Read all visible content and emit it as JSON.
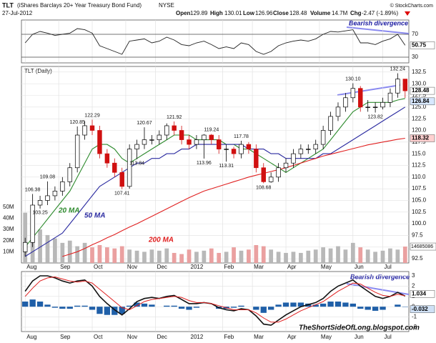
{
  "header": {
    "symbol": "TLT",
    "name": "(iShares Barclays 20+ Year Treasury Bond Fund)",
    "exchange": "NYSE",
    "date": "27-Jul-2012",
    "credit": "© StockCharts.com",
    "watermark": "TheShortSideOfLong.blogspot.com",
    "quote": [
      {
        "label": "Open",
        "value": "129.89"
      },
      {
        "label": "High",
        "value": "130.01"
      },
      {
        "label": "Low",
        "value": "126.96"
      },
      {
        "label": "Close",
        "value": "128.48"
      },
      {
        "label": "Volume",
        "value": "14.7M"
      },
      {
        "label": "Chg",
        "value": "-2.47 (-1.89%)"
      }
    ]
  },
  "chart_data": [
    {
      "type": "line",
      "annotation": "Bearish divergence",
      "ylim": [
        20,
        95
      ],
      "yticks": [
        30,
        70
      ],
      "series": [
        {
          "color": "#222222",
          "values": [
            55,
            70,
            75,
            72,
            68,
            70,
            72,
            80,
            78,
            72,
            50,
            45,
            40,
            35,
            58,
            60,
            62,
            55,
            58,
            65,
            60,
            52,
            50,
            55,
            58,
            52,
            45,
            48,
            45,
            55,
            52,
            40,
            35,
            40,
            50,
            55,
            58,
            60,
            58,
            62,
            70,
            75,
            74,
            76,
            78,
            55,
            55,
            52,
            58,
            62,
            70,
            50.75
          ]
        }
      ]
    },
    {
      "type": "candlestick",
      "title": "TLT (Daily)",
      "ylim": [
        91.6,
        133.7
      ],
      "xlim": [
        -0.5,
        51.5
      ],
      "yticks": [
        92.5,
        {
          "value": 95,
          "label": "95.0"
        },
        97.5,
        {
          "value": 100,
          "label": "100.0"
        },
        102.5,
        {
          "value": 105,
          "label": "105.0"
        },
        107.5,
        {
          "value": 110,
          "label": "110.0"
        },
        112.5,
        {
          "value": 115,
          "label": "115.0"
        },
        117.5,
        {
          "value": 120,
          "label": "120.0"
        },
        122.5,
        {
          "value": 125,
          "label": "125.0"
        },
        127.5,
        {
          "value": 130,
          "label": "130.0"
        },
        132.5
      ],
      "xticks": [
        {
          "value": 0,
          "label": "Aug"
        },
        {
          "value": 4.5,
          "label": "Sep"
        },
        {
          "value": 9,
          "label": "Oct"
        },
        {
          "value": 13.5,
          "label": "Nov"
        },
        {
          "value": 17.5,
          "label": "Dec"
        },
        {
          "value": 22,
          "label": "2012"
        },
        {
          "value": 26.5,
          "label": "Feb"
        },
        {
          "value": 30.5,
          "label": "Mar"
        },
        {
          "value": 35,
          "label": "Apr"
        },
        {
          "value": 39.5,
          "label": "May"
        },
        {
          "value": 44,
          "label": "Jun"
        },
        {
          "value": 48,
          "label": "Jul"
        }
      ],
      "open": [
        94,
        96,
        104,
        105,
        106,
        107,
        109,
        112,
        119,
        121,
        120,
        115,
        113,
        111,
        108,
        116,
        117,
        118,
        118,
        119,
        121,
        120,
        118,
        117,
        118,
        119,
        118,
        116,
        116,
        115,
        117,
        116,
        112,
        109,
        110,
        112,
        113,
        115,
        116,
        116,
        117,
        120,
        123,
        125,
        127,
        129,
        125,
        125,
        125,
        126,
        128,
        131
      ],
      "high": [
        97,
        106.38,
        106,
        109.08,
        108,
        110,
        113,
        120.85,
        122,
        122.29,
        121,
        116,
        114,
        112,
        117,
        118,
        120.67,
        119,
        120,
        121.5,
        121.92,
        121,
        119,
        119,
        119.2,
        119.24,
        119,
        117,
        116.5,
        117.78,
        117.5,
        117,
        113,
        111,
        113,
        114,
        116,
        117,
        117,
        118,
        121,
        124,
        126,
        128,
        130.1,
        129.5,
        126.5,
        126,
        127,
        129,
        132.24,
        131
      ],
      "low": [
        93,
        95,
        103.25,
        104,
        105,
        106,
        108,
        111,
        118,
        119,
        114,
        112,
        110,
        107.41,
        107.5,
        113.84,
        116,
        117,
        117,
        118,
        119,
        117,
        116,
        116,
        113.96,
        117,
        115,
        113.31,
        114,
        114,
        115,
        111,
        108.68,
        108.8,
        109,
        111,
        112,
        114,
        115,
        115,
        116,
        119,
        122,
        124,
        126,
        124,
        124,
        123.82,
        124.5,
        125,
        127,
        126.96
      ],
      "close": [
        96,
        104,
        105,
        106,
        107,
        109,
        112,
        119,
        121,
        120,
        115,
        113,
        111,
        108,
        116,
        117,
        118,
        118,
        119,
        121,
        120,
        118,
        117,
        118,
        119,
        118,
        116,
        116,
        115,
        117,
        116,
        112,
        109,
        110,
        112,
        113,
        115,
        116,
        116,
        117,
        120,
        123,
        125,
        127,
        129,
        125,
        125,
        125,
        126,
        128,
        131,
        128.48
      ],
      "high_labels": [
        null,
        "106.38",
        null,
        "109.08",
        null,
        null,
        null,
        "120.85",
        null,
        "122.29",
        null,
        null,
        null,
        null,
        null,
        null,
        "120.67",
        null,
        null,
        null,
        "121.92",
        null,
        null,
        null,
        null,
        "119.24",
        null,
        null,
        null,
        "117.78",
        null,
        null,
        null,
        null,
        null,
        null,
        null,
        null,
        null,
        null,
        null,
        null,
        null,
        null,
        "130.10",
        null,
        null,
        null,
        null,
        null,
        "132.24",
        null
      ],
      "low_labels": [
        null,
        null,
        "103.25",
        null,
        null,
        null,
        null,
        null,
        null,
        null,
        null,
        null,
        null,
        "107.41",
        null,
        "113.84",
        null,
        null,
        null,
        null,
        null,
        null,
        null,
        null,
        "113.96",
        null,
        null,
        "113.31",
        null,
        null,
        null,
        null,
        "108.68",
        null,
        null,
        null,
        null,
        null,
        null,
        null,
        null,
        null,
        null,
        null,
        null,
        null,
        null,
        "123.82",
        null,
        null,
        null,
        null
      ],
      "series": [
        {
          "name": "20 MA",
          "color": "#2e8b2e",
          "values": [
            95,
            97,
            99,
            101,
            103,
            105,
            107,
            110,
            113,
            116,
            117,
            117,
            116,
            114,
            113,
            114,
            115,
            116,
            117,
            118,
            119,
            119,
            119,
            118,
            118,
            118,
            118,
            117,
            117,
            116,
            116,
            115,
            114,
            113,
            112,
            111,
            112,
            113,
            114,
            115,
            116,
            118,
            120,
            122,
            124,
            125,
            126,
            126,
            126,
            126,
            126.5,
            126.84
          ]
        },
        {
          "name": "50 MA",
          "color": "#2a2aa0",
          "values": [
            93,
            94,
            95,
            96,
            97,
            98,
            100,
            102,
            104,
            106,
            108,
            109,
            110,
            111,
            112,
            113,
            113,
            114,
            114,
            115,
            115,
            116,
            116,
            117,
            117,
            117,
            117,
            117,
            117,
            117,
            116,
            116,
            116,
            115,
            115,
            114,
            114,
            114,
            114,
            114,
            115,
            115,
            116,
            117,
            118,
            119,
            120,
            121,
            122,
            123,
            124,
            125
          ]
        },
        {
          "name": "200 MA",
          "color": "#e02020",
          "values": [
            null,
            null,
            null,
            null,
            null,
            93,
            93.5,
            94,
            94.7,
            95.5,
            96.2,
            97,
            97.7,
            98.5,
            99.3,
            100,
            100.8,
            101.6,
            102.4,
            103.2,
            104,
            104.8,
            105.6,
            106.3,
            107,
            107.5,
            108,
            108.5,
            109,
            109.5,
            110,
            110.4,
            110.8,
            111.2,
            111.6,
            112,
            112.5,
            113,
            113.5,
            114,
            114.5,
            114.9,
            115.3,
            115.7,
            116.1,
            116.5,
            116.9,
            117.2,
            117.5,
            117.8,
            118.1,
            118.32
          ]
        }
      ],
      "volume": {
        "ylim": [
          0,
          176000000
        ],
        "yticks": [
          {
            "value": 10000000,
            "label": "10M"
          },
          {
            "value": 20000000,
            "label": "20M"
          },
          {
            "value": 30000000,
            "label": "30M"
          },
          {
            "value": 40000000,
            "label": "40M"
          },
          {
            "value": 50000000,
            "label": "50M"
          }
        ],
        "values": [
          45000000,
          35000000,
          30000000,
          25000000,
          22000000,
          18000000,
          20000000,
          15000000,
          18000000,
          14000000,
          16000000,
          14000000,
          13000000,
          15000000,
          12000000,
          11000000,
          10000000,
          12000000,
          11000000,
          13000000,
          9000000,
          8000000,
          12000000,
          10000000,
          11000000,
          13000000,
          9000000,
          10000000,
          14000000,
          11000000,
          12000000,
          16000000,
          15000000,
          12000000,
          10000000,
          9000000,
          10000000,
          9000000,
          11000000,
          12000000,
          14000000,
          13000000,
          15000000,
          12000000,
          18000000,
          14000000,
          12000000,
          10000000,
          11000000,
          13000000,
          12000000,
          14685086
        ]
      }
    },
    {
      "type": "macd",
      "annotation": "Bearish divergence",
      "ylim": [
        -2.42,
        3.42
      ],
      "xlim": [
        -0.5,
        51.5
      ],
      "yticks": [
        -2,
        -1,
        0,
        1,
        2,
        3
      ],
      "xticks": [
        {
          "value": 0,
          "label": "Aug"
        },
        {
          "value": 4.5,
          "label": "Sep"
        },
        {
          "value": 9,
          "label": "Oct"
        },
        {
          "value": 13.5,
          "label": "Nov"
        },
        {
          "value": 17.5,
          "label": "Dec"
        },
        {
          "value": 22,
          "label": "2012"
        },
        {
          "value": 26.5,
          "label": "Feb"
        },
        {
          "value": 30.5,
          "label": "Mar"
        },
        {
          "value": 35,
          "label": "Apr"
        },
        {
          "value": 39.5,
          "label": "May"
        },
        {
          "value": 44,
          "label": "Jun"
        },
        {
          "value": 48,
          "label": "Jul"
        }
      ],
      "series": [
        {
          "color": "#111111",
          "values": [
            1.5,
            2.5,
            3,
            3,
            2.8,
            2.5,
            2.3,
            2.5,
            2.6,
            2,
            1,
            0.3,
            -0.3,
            -0.8,
            -0.2,
            0.5,
            0.8,
            0.9,
            0.8,
            1.0,
            1.1,
            0.7,
            0.3,
            0.3,
            0.4,
            0.3,
            -0.1,
            -0.3,
            -0.4,
            -0.2,
            -0.3,
            -0.9,
            -1.7,
            -1.8,
            -1.3,
            -0.8,
            -0.4,
            0,
            0.2,
            0.4,
            0.8,
            1.5,
            2,
            2.3,
            2.6,
            2.0,
            1.5,
            1.0,
            0.8,
            1.0,
            1.4,
            1.034
          ]
        },
        {
          "color": "#e02020",
          "values": [
            1.0,
            1.8,
            2.5,
            2.8,
            2.9,
            2.7,
            2.5,
            2.4,
            2.5,
            2.3,
            1.7,
            1.1,
            0.5,
            -0.1,
            -0.3,
            0.1,
            0.5,
            0.7,
            0.8,
            0.9,
            1.0,
            0.9,
            0.6,
            0.4,
            0.4,
            0.3,
            0.1,
            -0.1,
            -0.3,
            -0.3,
            -0.3,
            -0.6,
            -1.1,
            -1.5,
            -1.5,
            -1.2,
            -0.8,
            -0.4,
            -0.1,
            0.2,
            0.5,
            1.0,
            1.5,
            1.9,
            2.3,
            2.2,
            1.8,
            1.4,
            1.1,
            1.0,
            1.2,
            1.066
          ]
        }
      ],
      "histogram": {
        "color": "#1f5fa8",
        "values": [
          0.5,
          0.7,
          0.5,
          0.2,
          -0.1,
          -0.2,
          -0.2,
          0.1,
          0.1,
          -0.3,
          -0.7,
          -0.8,
          -0.8,
          -0.7,
          0.1,
          0.4,
          0.3,
          0.2,
          0,
          0.1,
          0.1,
          -0.2,
          -0.3,
          -0.1,
          0,
          0,
          -0.2,
          -0.2,
          -0.1,
          0.1,
          0,
          -0.3,
          -0.6,
          -0.3,
          0.2,
          0.4,
          0.4,
          0.4,
          0.3,
          0.2,
          0.3,
          0.5,
          0.5,
          0.4,
          0.3,
          -0.2,
          -0.3,
          -0.4,
          -0.3,
          0,
          0.2,
          -0.032
        ]
      }
    }
  ]
}
